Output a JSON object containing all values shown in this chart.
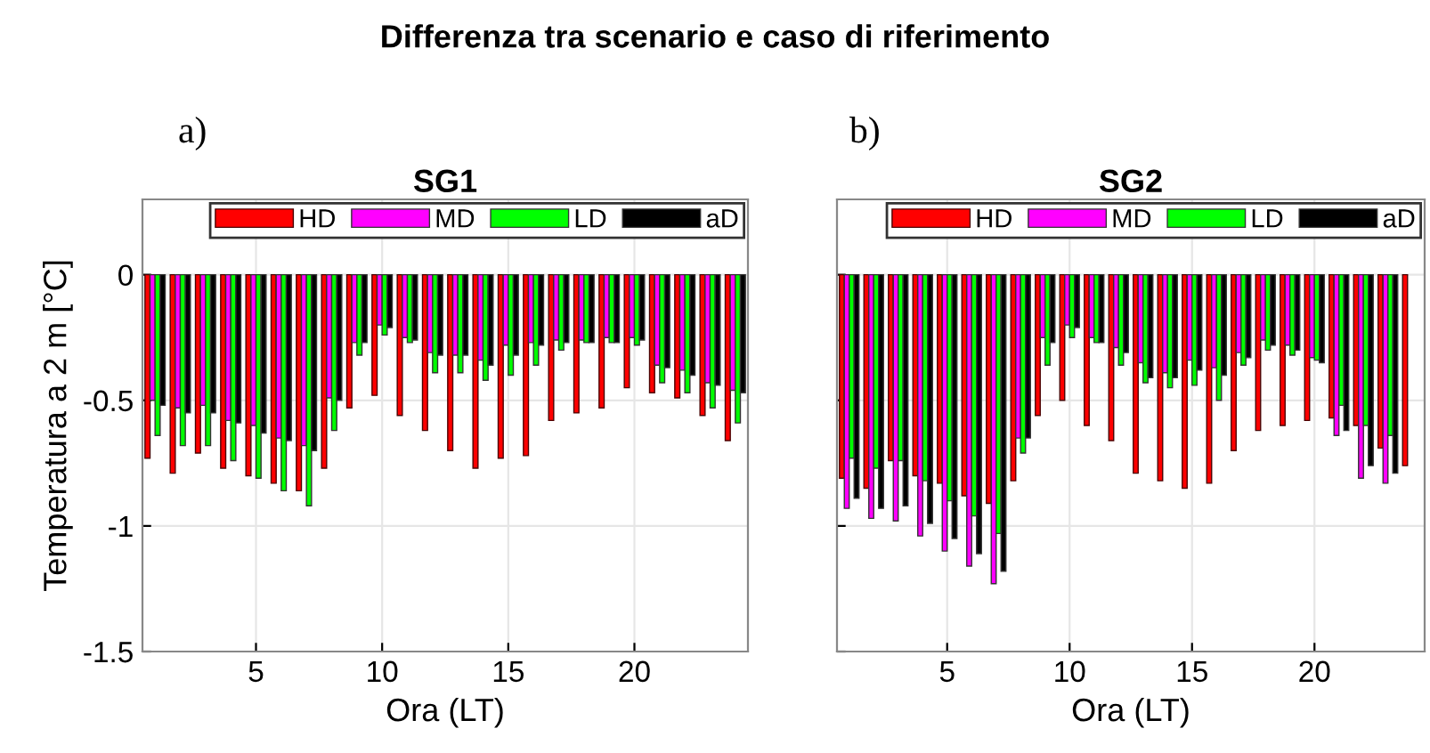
{
  "chart_data": [
    {
      "type": "bar",
      "title": "SG1",
      "xlabel": "Ora (LT)",
      "ylabel": "Temperatura a 2 m [°C]",
      "annotations": [
        "Differenza tra scenario e caso di riferimento",
        "a)"
      ],
      "x": [
        1,
        2,
        3,
        4,
        5,
        6,
        7,
        8,
        9,
        10,
        11,
        12,
        13,
        14,
        15,
        16,
        17,
        18,
        19,
        20,
        21,
        22,
        23,
        24
      ],
      "xlim": [
        0.5,
        24.5
      ],
      "xticks": [
        5,
        10,
        15,
        20
      ],
      "ylim": [
        -1.5,
        0.3
      ],
      "yticks": [
        -1.5,
        -1,
        -0.5,
        0
      ],
      "grid": true,
      "legend": "top right",
      "series": [
        {
          "name": "HD",
          "color": "#ff0000",
          "values": [
            -0.73,
            -0.79,
            -0.71,
            -0.77,
            -0.8,
            -0.83,
            -0.86,
            -0.77,
            -0.53,
            -0.48,
            -0.56,
            -0.62,
            -0.7,
            -0.77,
            -0.73,
            -0.72,
            -0.58,
            -0.55,
            -0.53,
            -0.45,
            -0.47,
            -0.49,
            -0.56,
            -0.66
          ]
        },
        {
          "name": "MD",
          "color": "#ff00ff",
          "values": [
            -0.5,
            -0.53,
            -0.52,
            -0.58,
            -0.6,
            -0.65,
            -0.68,
            -0.49,
            -0.27,
            -0.2,
            -0.25,
            -0.31,
            -0.32,
            -0.34,
            -0.28,
            -0.27,
            -0.26,
            -0.26,
            -0.25,
            -0.25,
            -0.36,
            -0.38,
            -0.43,
            -0.46
          ]
        },
        {
          "name": "LD",
          "color": "#00ff00",
          "values": [
            -0.64,
            -0.68,
            -0.68,
            -0.74,
            -0.81,
            -0.86,
            -0.92,
            -0.62,
            -0.32,
            -0.24,
            -0.27,
            -0.39,
            -0.39,
            -0.42,
            -0.4,
            -0.36,
            -0.3,
            -0.27,
            -0.27,
            -0.28,
            -0.43,
            -0.47,
            -0.53,
            -0.59
          ]
        },
        {
          "name": "aD",
          "color": "#000000",
          "values": [
            -0.52,
            -0.55,
            -0.55,
            -0.59,
            -0.63,
            -0.66,
            -0.7,
            -0.5,
            -0.27,
            -0.21,
            -0.26,
            -0.32,
            -0.32,
            -0.36,
            -0.32,
            -0.28,
            -0.27,
            -0.27,
            -0.27,
            -0.26,
            -0.37,
            -0.4,
            -0.44,
            -0.47
          ]
        }
      ]
    },
    {
      "type": "bar",
      "title": "SG2",
      "xlabel": "Ora (LT)",
      "annotations": [
        "b)"
      ],
      "x": [
        1,
        2,
        3,
        4,
        5,
        6,
        7,
        8,
        9,
        10,
        11,
        12,
        13,
        14,
        15,
        16,
        17,
        18,
        19,
        20,
        21,
        22,
        23,
        24
      ],
      "xlim": [
        0.5,
        24.5
      ],
      "xticks": [
        5,
        10,
        15,
        20
      ],
      "ylim": [
        -1.5,
        0.3
      ],
      "yticks": [
        -1.5,
        -1,
        -0.5,
        0
      ],
      "tick_labels": "x",
      "grid": true,
      "legend": "top right",
      "series": [
        {
          "name": "HD",
          "color": "#ff0000",
          "values": [
            -0.81,
            -0.85,
            -0.74,
            -0.8,
            -0.83,
            -0.88,
            -0.91,
            -0.82,
            -0.56,
            -0.5,
            -0.6,
            -0.66,
            -0.79,
            -0.82,
            -0.85,
            -0.83,
            -0.7,
            -0.62,
            -0.6,
            -0.58,
            -0.57,
            -0.6,
            -0.69,
            -0.76
          ]
        },
        {
          "name": "MD",
          "color": "#ff00ff",
          "values": [
            -0.93,
            -0.97,
            -0.98,
            -1.04,
            -1.1,
            -1.16,
            -1.23,
            -0.65,
            -0.25,
            -0.2,
            -0.25,
            -0.29,
            -0.35,
            -0.39,
            -0.34,
            -0.37,
            -0.31,
            -0.26,
            -0.28,
            -0.33,
            -0.64,
            -0.81,
            -0.83,
            null
          ]
        },
        {
          "name": "LD",
          "color": "#00ff00",
          "values": [
            -0.73,
            -0.77,
            -0.74,
            -0.82,
            -0.9,
            -0.96,
            -1.03,
            -0.71,
            -0.36,
            -0.25,
            -0.27,
            -0.36,
            -0.43,
            -0.45,
            -0.44,
            -0.5,
            -0.36,
            -0.3,
            -0.32,
            -0.34,
            -0.52,
            -0.6,
            -0.64,
            null
          ]
        },
        {
          "name": "aD",
          "color": "#000000",
          "values": [
            -0.89,
            -0.93,
            -0.92,
            -0.99,
            -1.05,
            -1.11,
            -1.18,
            -0.65,
            -0.27,
            -0.21,
            -0.27,
            -0.31,
            -0.41,
            -0.41,
            -0.38,
            -0.4,
            -0.33,
            -0.28,
            -0.3,
            -0.35,
            -0.62,
            -0.76,
            -0.79,
            null
          ]
        }
      ]
    }
  ]
}
